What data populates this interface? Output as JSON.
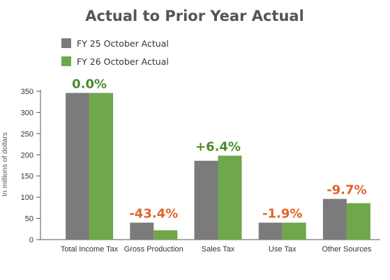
{
  "colors": {
    "series1": "#7b7b7b",
    "series2": "#6ea84a",
    "positive": "#4e8a2e",
    "negative": "#e0632a",
    "axis": "#555555"
  },
  "chart_data": {
    "type": "bar",
    "title": "Actual to Prior Year Actual",
    "ylabel": "In millions of dollars",
    "xlabel": "",
    "ylim": [
      0,
      350
    ],
    "yticks": [
      0,
      50,
      100,
      150,
      200,
      250,
      300,
      350
    ],
    "grid": false,
    "legend_position": "top-left",
    "categories": [
      "Total Income Tax",
      "Gross Production",
      "Sales Tax",
      "Use Tax",
      "Other Sources"
    ],
    "series": [
      {
        "name": "FY 25 October Actual",
        "values": [
          346,
          40,
          186,
          40,
          96
        ]
      },
      {
        "name": "FY 26 October Actual",
        "values": [
          346,
          22,
          198,
          40,
          86
        ]
      }
    ],
    "annotations": [
      {
        "text": "0.0%",
        "tone": "positive"
      },
      {
        "text": "-43.4%",
        "tone": "negative"
      },
      {
        "text": "+6.4%",
        "tone": "positive"
      },
      {
        "text": "-1.9%",
        "tone": "negative"
      },
      {
        "text": "-9.7%",
        "tone": "negative"
      }
    ]
  }
}
